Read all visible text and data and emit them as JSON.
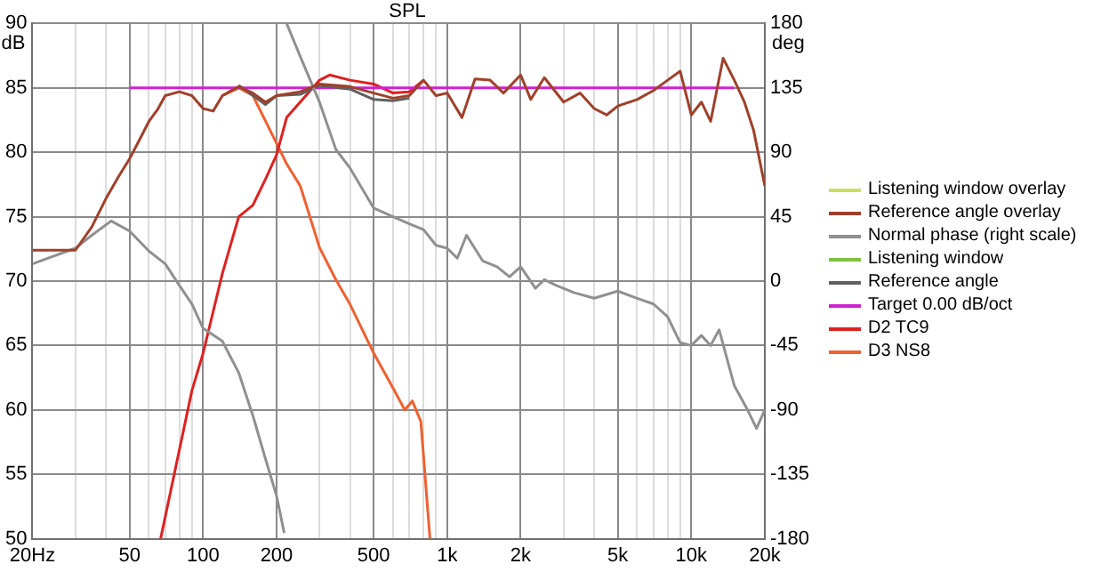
{
  "chart_data": {
    "type": "line",
    "title": "SPL",
    "ylabel": "dB",
    "y2label": "deg",
    "log": "x",
    "grid": true,
    "legend": "right",
    "marker": "none",
    "xlim": [
      20,
      20000
    ],
    "xticks": [
      {
        "value": 20,
        "label": "20Hz"
      },
      {
        "value": 30,
        "label": null
      },
      {
        "value": 40,
        "label": null
      },
      50,
      {
        "value": 60,
        "label": null
      },
      {
        "value": 70,
        "label": null
      },
      {
        "value": 80,
        "label": null
      },
      {
        "value": 90,
        "label": null
      },
      100,
      200,
      {
        "value": 300,
        "label": null
      },
      {
        "value": 400,
        "label": null
      },
      500,
      {
        "value": 600,
        "label": null
      },
      {
        "value": 700,
        "label": null
      },
      {
        "value": 800,
        "label": null
      },
      {
        "value": 900,
        "label": null
      },
      {
        "value": 1000,
        "label": "1k"
      },
      {
        "value": 2000,
        "label": "2k"
      },
      {
        "value": 3000,
        "label": null
      },
      {
        "value": 4000,
        "label": null
      },
      {
        "value": 5000,
        "label": "5k"
      },
      {
        "value": 6000,
        "label": null
      },
      {
        "value": 7000,
        "label": null
      },
      {
        "value": 8000,
        "label": null
      },
      {
        "value": 9000,
        "label": null
      },
      {
        "value": 10000,
        "label": "10k"
      },
      {
        "value": 20000,
        "label": "20k"
      }
    ],
    "ylim": [
      50,
      90
    ],
    "yticks": [
      50,
      55,
      60,
      65,
      70,
      75,
      80,
      85,
      90
    ],
    "y2lim": [
      -180,
      180
    ],
    "y2ticks": [
      -180,
      -135,
      -90,
      -45,
      0,
      45,
      90,
      135,
      180
    ],
    "series": [
      {
        "name": "Listening window overlay",
        "color": "#c8e060"
      },
      {
        "name": "Reference angle overlay",
        "color": "#a0402a",
        "x": [
          20,
          30,
          35,
          40,
          45,
          50,
          55,
          60,
          65,
          70,
          80,
          90,
          100,
          110,
          120,
          140,
          160,
          180,
          200,
          250,
          300,
          400,
          500,
          600,
          700,
          800,
          900,
          1000,
          1150,
          1300,
          1500,
          1700,
          2000,
          2200,
          2500,
          3000,
          3500,
          4000,
          4500,
          5000,
          6000,
          7000,
          8000,
          9000,
          10000,
          11000,
          12000,
          13500,
          15000,
          16500,
          18000,
          20000
        ],
        "values": [
          72.4,
          72.4,
          74.2,
          76.4,
          78.1,
          79.5,
          81,
          82.4,
          83.3,
          84.4,
          84.7,
          84.4,
          83.4,
          83.2,
          84.4,
          85.1,
          84.6,
          83.9,
          84.4,
          84.7,
          85.3,
          85.1,
          84.6,
          84.2,
          84.4,
          85.6,
          84.4,
          84.6,
          82.7,
          85.7,
          85.6,
          84.6,
          86,
          84.1,
          85.8,
          83.9,
          84.6,
          83.4,
          82.9,
          83.6,
          84.1,
          84.8,
          85.6,
          86.3,
          82.9,
          83.9,
          82.4,
          87.3,
          85.6,
          83.9,
          81.7,
          77.4
        ]
      },
      {
        "name": "Normal phase (right scale)",
        "color": "#909090",
        "axis": "y2",
        "x": [
          20,
          30,
          35,
          42,
          50,
          60,
          70,
          80,
          90,
          100,
          120,
          140,
          160,
          180,
          200,
          215,
          217,
          220,
          250,
          300,
          350,
          400,
          500,
          600,
          700,
          800,
          900,
          1000,
          1100,
          1200,
          1400,
          1600,
          1800,
          2000,
          2300,
          2500,
          2800,
          3300,
          4000,
          5000,
          6000,
          7000,
          8000,
          9000,
          10000,
          11000,
          12000,
          13000,
          15000,
          17000,
          18500,
          20000
        ],
        "values": [
          12,
          23,
          32,
          42,
          35,
          21,
          12,
          -3,
          -16,
          -33,
          -42,
          -64,
          -94,
          -124,
          -150,
          -176,
          null,
          180,
          157,
          125,
          92,
          79,
          51,
          45,
          40,
          36,
          25,
          23,
          16,
          32,
          14,
          10,
          3,
          10,
          -5,
          1,
          -3,
          -8,
          -12,
          -7,
          -12,
          -16,
          -25,
          -43,
          -45,
          -38,
          -45,
          -34,
          -73,
          -90,
          -103,
          -90
        ]
      },
      {
        "name": "Listening window",
        "color": "#80c040"
      },
      {
        "name": "Reference angle",
        "color": "#606060",
        "x": [
          140,
          180,
          200,
          250,
          300,
          400,
          500,
          600,
          700
        ],
        "values": [
          85.2,
          83.7,
          84.4,
          84.5,
          85.2,
          84.9,
          84.1,
          84,
          84.2
        ]
      },
      {
        "name": "Target 0.00 dB/oct",
        "color": "#d020d0",
        "x": [
          50,
          15000
        ],
        "values": [
          85,
          85
        ]
      },
      {
        "name": "D2 TC9",
        "color": "#e02020",
        "x": [
          67,
          90,
          100,
          120,
          140,
          160,
          180,
          200,
          220,
          250,
          300,
          330,
          400,
          500,
          600,
          700,
          800
        ],
        "values": [
          50,
          61.5,
          64.4,
          70.6,
          75,
          75.9,
          77.9,
          79.8,
          82.7,
          83.9,
          85.6,
          86,
          85.6,
          85.3,
          84.6,
          84.7,
          85.6
        ]
      },
      {
        "name": "D3 NS8",
        "color": "#f06030",
        "x": [
          120,
          140,
          160,
          200,
          220,
          250,
          300,
          350,
          400,
          500,
          600,
          670,
          720,
          780,
          850
        ],
        "values": [
          84.4,
          85,
          84.4,
          80.7,
          79.1,
          77.4,
          72.6,
          70.1,
          68.2,
          64.4,
          61.7,
          60,
          60.7,
          59.1,
          50
        ]
      }
    ]
  }
}
